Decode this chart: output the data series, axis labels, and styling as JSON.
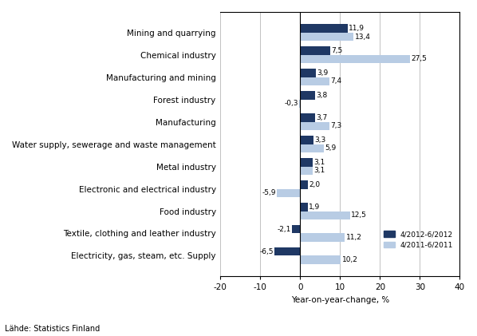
{
  "categories": [
    "Mining and quarrying",
    "Chemical industry",
    "Manufacturing and mining",
    "Forest industry",
    "Manufacturing",
    "Water supply, sewerage and waste management",
    "Metal industry",
    "Electronic and electrical industry",
    "Food industry",
    "Textile, clothing and leather industry",
    "Electricity, gas, steam, etc. Supply"
  ],
  "values_2012": [
    11.9,
    7.5,
    3.9,
    3.8,
    3.7,
    3.3,
    3.1,
    2.0,
    1.9,
    -2.1,
    -6.5
  ],
  "values_2011": [
    13.4,
    27.5,
    7.4,
    -0.3,
    7.3,
    5.9,
    3.1,
    -5.9,
    12.5,
    11.2,
    10.2
  ],
  "color_2012": "#1f3864",
  "color_2011": "#b8cce4",
  "legend_2012": "4/2012-6/2012",
  "legend_2011": "4/2011-6/2011",
  "xlabel": "Year-on-year-change, %",
  "xlim": [
    -20,
    40
  ],
  "xticks": [
    -20,
    -10,
    0,
    10,
    20,
    30,
    40
  ],
  "source": "Lähde: Statistics Finland",
  "bar_height": 0.38
}
